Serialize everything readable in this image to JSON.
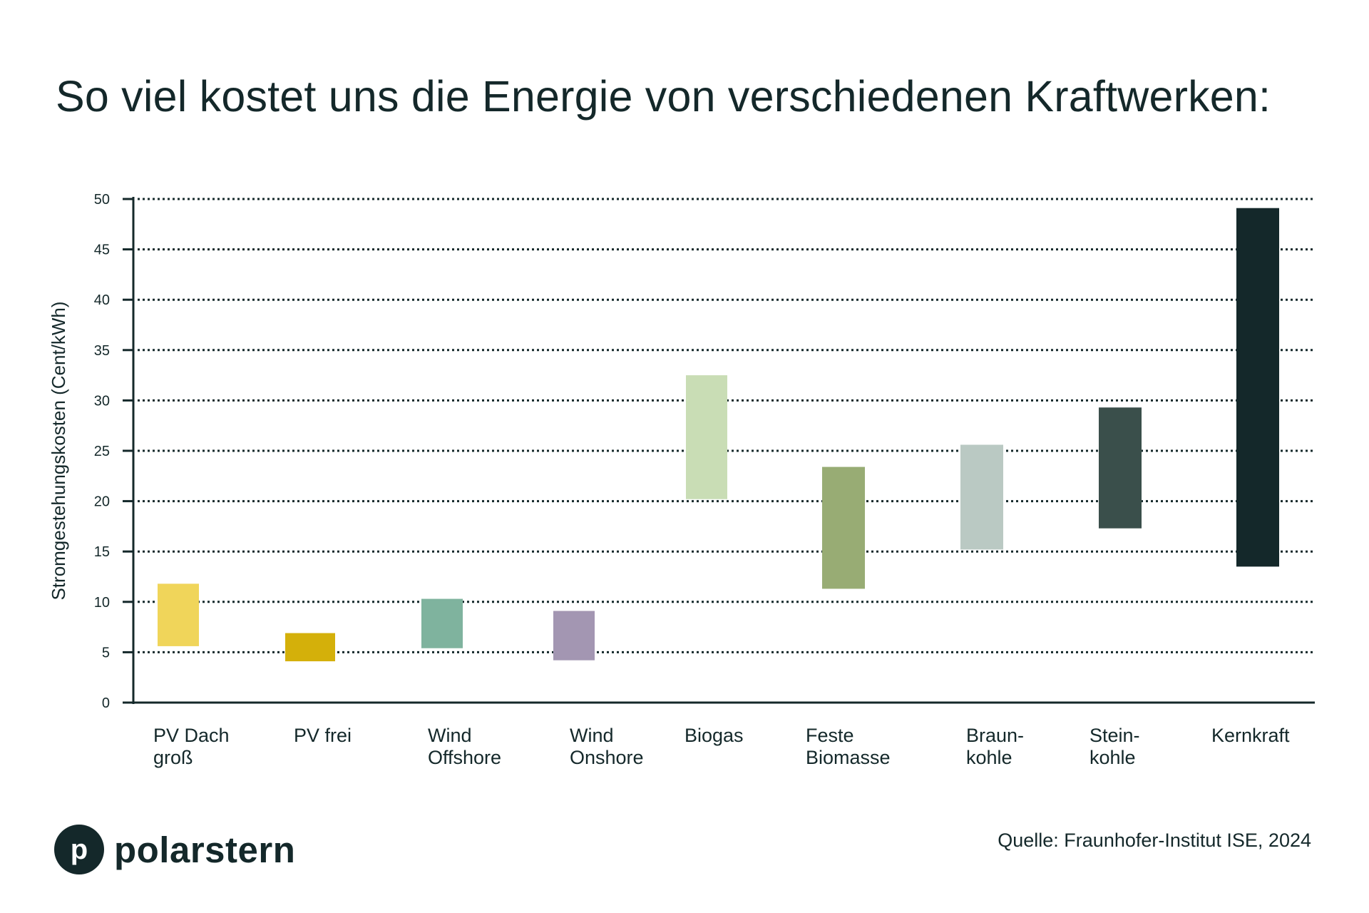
{
  "chart_data": {
    "type": "bar",
    "subtype": "floating-range",
    "title": "So viel kostet uns die Energie von verschiedenen Kraftwerken:",
    "xlabel": "",
    "ylabel": "Stromgestehungskosten (Cent/kWh)",
    "ylim": [
      0,
      50
    ],
    "yticks": [
      0,
      5,
      10,
      15,
      20,
      25,
      30,
      35,
      40,
      45,
      50
    ],
    "grid": "horizontal-dotted",
    "categories": [
      "PV Dach\ngroß",
      "PV frei",
      "Wind\nOffshore",
      "Wind\nOnshore",
      "Biogas",
      "Feste\nBiomasse",
      "Braun-\nkohle",
      "Stein-\nkohle",
      "Kernkraft"
    ],
    "ranges": [
      [
        5.6,
        11.8
      ],
      [
        4.1,
        6.9
      ],
      [
        5.4,
        10.3
      ],
      [
        4.2,
        9.1
      ],
      [
        20.2,
        32.5
      ],
      [
        11.3,
        23.4
      ],
      [
        15.2,
        25.6
      ],
      [
        17.3,
        29.3
      ],
      [
        13.5,
        49.1
      ]
    ],
    "colors": [
      "#f0d55a",
      "#d4b00a",
      "#7fb39e",
      "#a396b2",
      "#c9ddb5",
      "#98ac74",
      "#bac9c3",
      "#3a4f4b",
      "#14282a"
    ]
  },
  "footer": {
    "logo_letter": "p",
    "logo_text": "polarstern",
    "source": "Quelle: Fraunhofer-Institut ISE, 2024"
  }
}
